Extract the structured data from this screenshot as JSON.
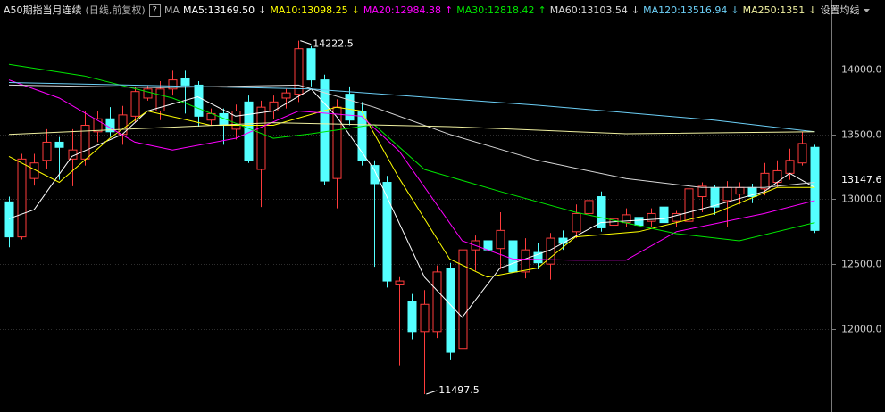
{
  "chart_data": {
    "type": "candlestick",
    "title": "A50期指当月连续",
    "subtitle": "(日线,前复权)",
    "help": "?",
    "ma_label": "MA",
    "settings": "设置均线",
    "up_color": "#ff3c3c",
    "down_color": "#54ffff",
    "ylim": [
      11360,
      14536
    ],
    "yticks": [
      {
        "value": 12000,
        "label": "12000.0"
      },
      {
        "value": 12500,
        "label": "12500.0"
      },
      {
        "value": 13000,
        "label": "13000.0"
      },
      {
        "value": 13500,
        "label": "13500.0"
      },
      {
        "value": 14000,
        "label": "14000.0"
      }
    ],
    "grid": true,
    "last_price": 13147.6,
    "open": [
      12980,
      12710,
      13160,
      13300,
      13440,
      13310,
      13310,
      13520,
      13620,
      13500,
      13640,
      13780,
      13680,
      13850,
      13930,
      13880,
      13610,
      13660,
      13540,
      13750,
      13230,
      13680,
      13780,
      13810,
      14160,
      13920,
      13160,
      13810,
      13680,
      13260,
      13130,
      12340,
      12210,
      11980,
      11980,
      12470,
      11850,
      12610,
      12680,
      12620,
      12680,
      12440,
      12590,
      12500,
      12700,
      12750,
      12890,
      13020,
      12800,
      12820,
      12860,
      12830,
      12940,
      12830,
      12830,
      13020,
      13090,
      12990,
      13040,
      13090,
      13080,
      13130,
      13200,
      13280,
      13400
    ],
    "high": [
      13020,
      13350,
      13350,
      13540,
      13480,
      13540,
      13680,
      13680,
      13710,
      13720,
      13870,
      13880,
      13910,
      13990,
      13990,
      13910,
      13700,
      13700,
      13730,
      13800,
      13760,
      13800,
      13850,
      14222.5,
      14180,
      13960,
      13770,
      13870,
      13750,
      13300,
      13180,
      12400,
      12270,
      12300,
      12490,
      12510,
      12700,
      12720,
      12870,
      12900,
      12730,
      12700,
      12660,
      12740,
      12760,
      12960,
      13060,
      13060,
      12880,
      12930,
      12880,
      12930,
      12980,
      12910,
      13160,
      13130,
      13110,
      13140,
      13130,
      13120,
      13280,
      13300,
      13390,
      13520,
      13420
    ],
    "low": [
      12630,
      12690,
      13105,
      13230,
      13150,
      13100,
      13260,
      13440,
      13480,
      13420,
      13590,
      13760,
      13610,
      13800,
      13660,
      13560,
      13570,
      13420,
      13460,
      13280,
      12940,
      13620,
      13700,
      13750,
      13870,
      13110,
      12930,
      13570,
      13260,
      12480,
      12320,
      11720,
      11920,
      11497.5,
      11930,
      11760,
      11820,
      12450,
      12550,
      12460,
      12370,
      12390,
      12460,
      12380,
      12610,
      12700,
      12830,
      12750,
      12760,
      12790,
      12770,
      12790,
      12780,
      12790,
      12760,
      12900,
      12880,
      12790,
      12960,
      12970,
      13030,
      13090,
      13150,
      13260,
      12740
    ],
    "close": [
      12710,
      13310,
      13280,
      13440,
      13400,
      13380,
      13570,
      13620,
      13520,
      13650,
      13830,
      13850,
      13850,
      13920,
      13880,
      13640,
      13660,
      13570,
      13680,
      13300,
      13710,
      13750,
      13820,
      14160,
      13920,
      13140,
      13710,
      13610,
      13300,
      13120,
      12370,
      12370,
      11980,
      12190,
      12440,
      11820,
      12610,
      12680,
      12610,
      12760,
      12440,
      12610,
      12510,
      12700,
      12660,
      12890,
      12990,
      12780,
      12850,
      12880,
      12800,
      12890,
      12820,
      12890,
      13080,
      13100,
      12940,
      13090,
      13090,
      13020,
      13200,
      13220,
      13300,
      13430,
      12760
    ],
    "series": [
      {
        "name": "MA5:13169.50",
        "trend": "↓",
        "color": "#ffffff",
        "x": [
          0,
          2,
          5,
          9,
          11,
          15,
          18,
          21,
          24,
          26,
          29,
          33,
          36,
          39,
          43,
          47,
          52,
          56,
          60,
          62,
          64
        ],
        "values": [
          12850,
          12920,
          13330,
          13500,
          13680,
          13790,
          13640,
          13680,
          13850,
          13640,
          13230,
          12400,
          12090,
          12470,
          12610,
          12820,
          12850,
          12950,
          13060,
          13200,
          13090
        ]
      },
      {
        "name": "MA10:13098.25",
        "trend": "↓",
        "color": "#ffff00",
        "x": [
          0,
          4,
          8,
          11,
          16,
          21,
          26,
          28,
          31,
          35,
          38,
          42,
          45,
          50,
          56,
          61,
          64
        ],
        "values": [
          13330,
          13130,
          13470,
          13680,
          13570,
          13570,
          13710,
          13680,
          13160,
          12540,
          12400,
          12470,
          12710,
          12750,
          12890,
          13090,
          13090
        ]
      },
      {
        "name": "MA20:12984.38",
        "trend": "↑",
        "color": "#ff00ff",
        "x": [
          0,
          4,
          10,
          13,
          18,
          23,
          28,
          31,
          36,
          40,
          45,
          49,
          53,
          60,
          64
        ],
        "values": [
          13920,
          13780,
          13440,
          13380,
          13470,
          13680,
          13640,
          13370,
          12680,
          12540,
          12530,
          12530,
          12750,
          12890,
          12990
        ]
      },
      {
        "name": "MA30:12818.42",
        "trend": "↑",
        "color": "#00e600",
        "x": [
          0,
          6,
          13,
          21,
          24,
          29,
          33,
          39,
          45,
          53,
          58,
          64
        ],
        "values": [
          14040,
          13950,
          13780,
          13470,
          13505,
          13575,
          13230,
          13060,
          12900,
          12735,
          12680,
          12820
        ]
      },
      {
        "name": "MA60:13103.54",
        "trend": "↓",
        "color": "#d8d8d8",
        "x": [
          0,
          12,
          23,
          29,
          35,
          42,
          49,
          55,
          60,
          64
        ],
        "values": [
          13880,
          13860,
          13880,
          13710,
          13500,
          13300,
          13160,
          13090,
          13090,
          13130
        ]
      },
      {
        "name": "MA120:13516.94",
        "trend": "↓",
        "color": "#6ccff6",
        "x": [
          0,
          24,
          42,
          56,
          64
        ],
        "values": [
          13900,
          13850,
          13725,
          13610,
          13520
        ]
      },
      {
        "name": "MA250:1351",
        "trend": "↓",
        "color": "#f0f0a0",
        "x": [
          0,
          21,
          35,
          49,
          64
        ],
        "values": [
          13500,
          13590,
          13560,
          13505,
          13520
        ]
      }
    ],
    "annotations": [
      {
        "index": 23,
        "value": 14222.5
      },
      {
        "index": 33,
        "value": 11497.5
      }
    ]
  }
}
